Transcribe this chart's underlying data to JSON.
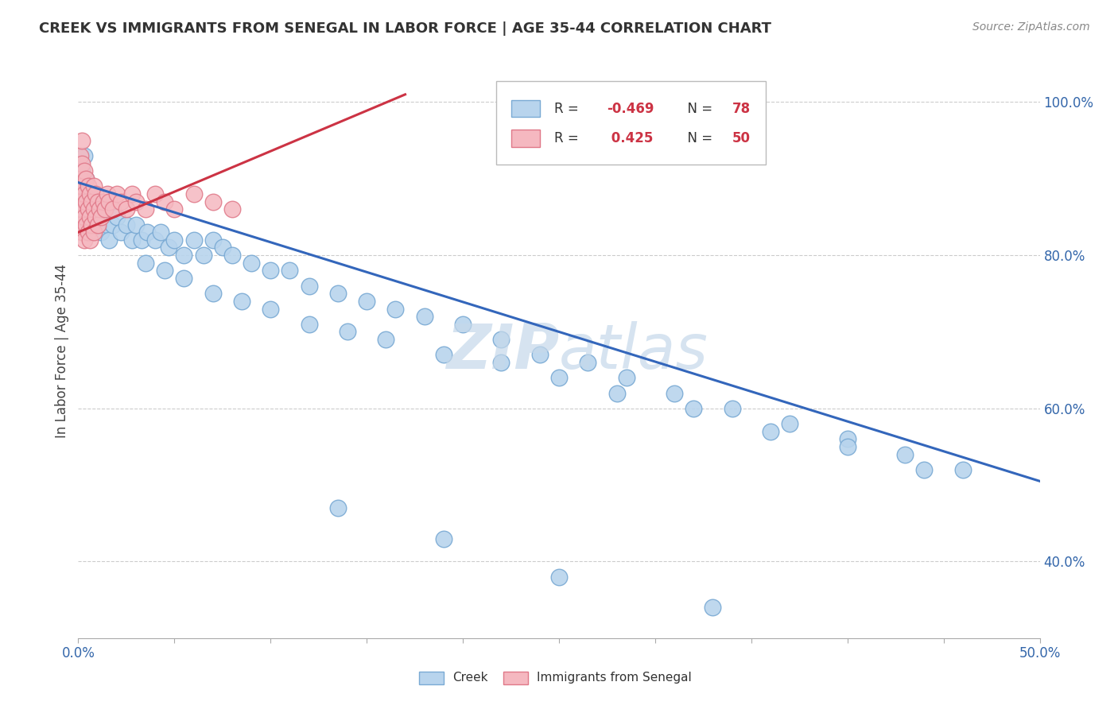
{
  "title": "CREEK VS IMMIGRANTS FROM SENEGAL IN LABOR FORCE | AGE 35-44 CORRELATION CHART",
  "source": "Source: ZipAtlas.com",
  "ylabel": "In Labor Force | Age 35-44",
  "xlim": [
    0.0,
    0.5
  ],
  "ylim": [
    0.3,
    1.05
  ],
  "creek_color": "#b8d4ed",
  "creek_edge_color": "#7aaad4",
  "senegal_color": "#f5b8c0",
  "senegal_edge_color": "#e07888",
  "trend_blue": "#3366bb",
  "trend_pink": "#cc3344",
  "watermark_color": "#c5d8ea",
  "blue_trend_x": [
    0.0,
    0.5
  ],
  "blue_trend_y": [
    0.895,
    0.505
  ],
  "pink_trend_x": [
    0.0,
    0.17
  ],
  "pink_trend_y": [
    0.83,
    1.01
  ],
  "creek_x": [
    0.001,
    0.002,
    0.002,
    0.003,
    0.003,
    0.004,
    0.004,
    0.005,
    0.005,
    0.006,
    0.006,
    0.007,
    0.008,
    0.009,
    0.01,
    0.011,
    0.012,
    0.013,
    0.015,
    0.016,
    0.018,
    0.02,
    0.022,
    0.025,
    0.028,
    0.03,
    0.033,
    0.036,
    0.04,
    0.043,
    0.047,
    0.05,
    0.055,
    0.06,
    0.065,
    0.07,
    0.075,
    0.08,
    0.09,
    0.1,
    0.11,
    0.12,
    0.135,
    0.15,
    0.165,
    0.18,
    0.2,
    0.22,
    0.24,
    0.265,
    0.285,
    0.31,
    0.34,
    0.37,
    0.4,
    0.43,
    0.46,
    0.035,
    0.045,
    0.055,
    0.07,
    0.085,
    0.1,
    0.12,
    0.14,
    0.16,
    0.19,
    0.22,
    0.25,
    0.28,
    0.32,
    0.36,
    0.4,
    0.44,
    0.135,
    0.19,
    0.25,
    0.33
  ],
  "creek_y": [
    0.89,
    0.91,
    0.87,
    0.93,
    0.86,
    0.9,
    0.85,
    0.88,
    0.84,
    0.87,
    0.83,
    0.86,
    0.87,
    0.85,
    0.86,
    0.84,
    0.83,
    0.85,
    0.84,
    0.82,
    0.84,
    0.85,
    0.83,
    0.84,
    0.82,
    0.84,
    0.82,
    0.83,
    0.82,
    0.83,
    0.81,
    0.82,
    0.8,
    0.82,
    0.8,
    0.82,
    0.81,
    0.8,
    0.79,
    0.78,
    0.78,
    0.76,
    0.75,
    0.74,
    0.73,
    0.72,
    0.71,
    0.69,
    0.67,
    0.66,
    0.64,
    0.62,
    0.6,
    0.58,
    0.56,
    0.54,
    0.52,
    0.79,
    0.78,
    0.77,
    0.75,
    0.74,
    0.73,
    0.71,
    0.7,
    0.69,
    0.67,
    0.66,
    0.64,
    0.62,
    0.6,
    0.57,
    0.55,
    0.52,
    0.47,
    0.43,
    0.38,
    0.34
  ],
  "senegal_x": [
    0.001,
    0.001,
    0.001,
    0.001,
    0.002,
    0.002,
    0.002,
    0.002,
    0.002,
    0.003,
    0.003,
    0.003,
    0.003,
    0.004,
    0.004,
    0.004,
    0.005,
    0.005,
    0.005,
    0.006,
    0.006,
    0.006,
    0.007,
    0.007,
    0.008,
    0.008,
    0.008,
    0.009,
    0.009,
    0.01,
    0.01,
    0.011,
    0.012,
    0.013,
    0.014,
    0.015,
    0.016,
    0.018,
    0.02,
    0.022,
    0.025,
    0.028,
    0.03,
    0.035,
    0.04,
    0.045,
    0.05,
    0.06,
    0.07,
    0.08
  ],
  "senegal_y": [
    0.84,
    0.87,
    0.9,
    0.93,
    0.83,
    0.86,
    0.89,
    0.92,
    0.95,
    0.82,
    0.85,
    0.88,
    0.91,
    0.84,
    0.87,
    0.9,
    0.83,
    0.86,
    0.89,
    0.82,
    0.85,
    0.88,
    0.84,
    0.87,
    0.83,
    0.86,
    0.89,
    0.85,
    0.88,
    0.84,
    0.87,
    0.86,
    0.85,
    0.87,
    0.86,
    0.88,
    0.87,
    0.86,
    0.88,
    0.87,
    0.86,
    0.88,
    0.87,
    0.86,
    0.88,
    0.87,
    0.86,
    0.88,
    0.87,
    0.86
  ]
}
